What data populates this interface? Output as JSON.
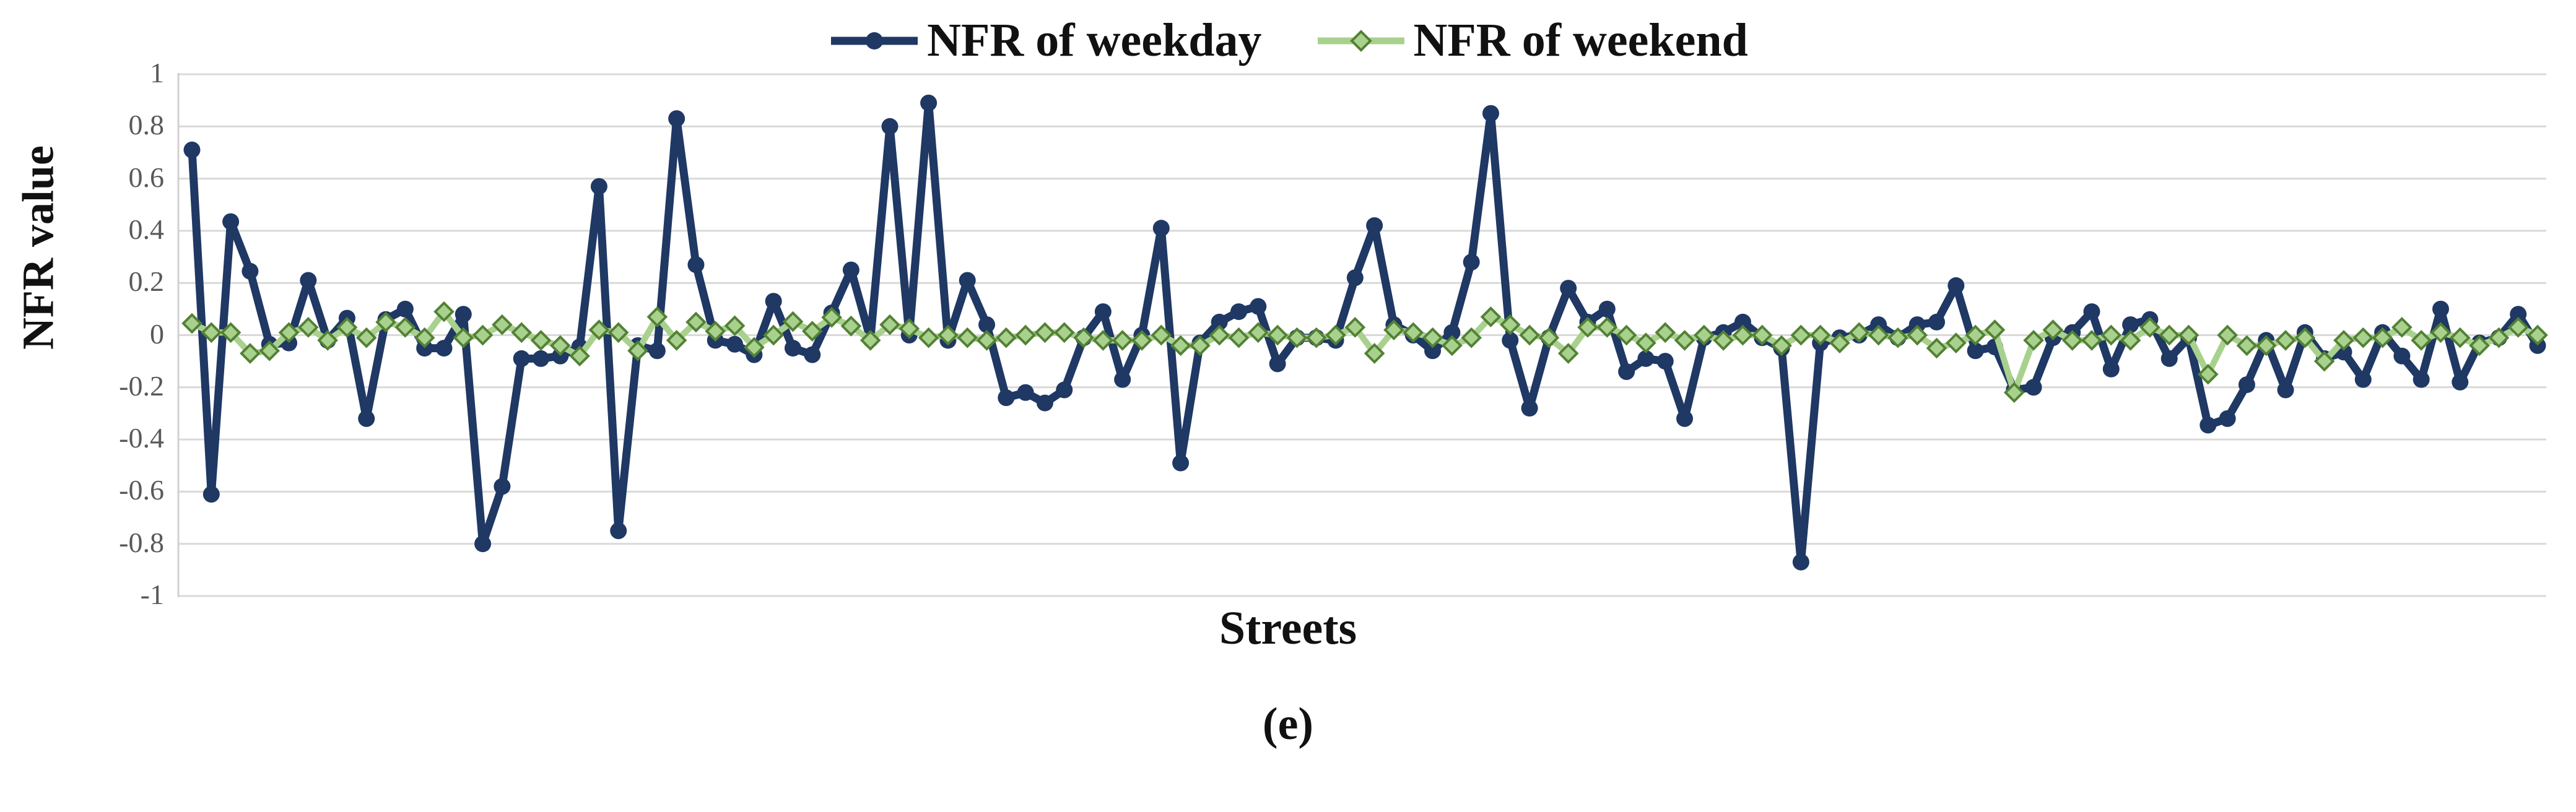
{
  "figure": {
    "caption": "(e)",
    "background": "#ffffff"
  },
  "chart_data": {
    "type": "line",
    "title": "",
    "xlabel": "Streets",
    "ylabel": "NFR value",
    "ylim": [
      -1,
      1
    ],
    "x_count": 122,
    "x_tick_labels": [],
    "grid": "horizontal",
    "legend_position": "top-center",
    "y_ticks": [
      1,
      0.8,
      0.6,
      0.4,
      0.2,
      0,
      -0.2,
      -0.4,
      -0.6,
      -0.8,
      -1
    ],
    "y_tick_labels": [
      "1",
      "0.8",
      "0.6",
      "0.4",
      "0.2",
      "0",
      "-0.2",
      "-0.4",
      "-0.6",
      "-0.8",
      "-1"
    ],
    "colors": {
      "weekday_line": "#1f3864",
      "weekend_line": "#a9d18e",
      "weekend_marker_stroke": "#538135",
      "grid": "#d9d9d9",
      "axis": "#d0d0d0",
      "tick_text": "#595959",
      "label_text": "#111111"
    },
    "series": [
      {
        "name": "NFR of weekday",
        "marker": "circle",
        "color": "#1f3864",
        "values": [
          0.71,
          -0.61,
          0.435,
          0.245,
          -0.035,
          -0.03,
          0.21,
          -0.02,
          0.065,
          -0.32,
          0.06,
          0.1,
          -0.05,
          -0.05,
          0.08,
          -0.8,
          -0.58,
          -0.09,
          -0.09,
          -0.08,
          -0.045,
          0.57,
          -0.75,
          -0.04,
          -0.06,
          0.83,
          0.27,
          -0.02,
          -0.035,
          -0.075,
          0.13,
          -0.05,
          -0.075,
          0.085,
          0.25,
          -0.015,
          0.8,
          0.0,
          0.89,
          -0.02,
          0.21,
          0.04,
          -0.24,
          -0.22,
          -0.26,
          -0.21,
          -0.01,
          0.09,
          -0.17,
          0.0,
          0.41,
          -0.49,
          -0.03,
          0.05,
          0.09,
          0.11,
          -0.11,
          -0.01,
          -0.01,
          -0.02,
          0.22,
          0.42,
          0.04,
          0.0,
          -0.06,
          0.01,
          0.28,
          0.85,
          -0.02,
          -0.28,
          -0.01,
          0.18,
          0.05,
          0.1,
          -0.14,
          -0.09,
          -0.1,
          -0.32,
          -0.01,
          0.01,
          0.05,
          -0.01,
          -0.05,
          -0.87,
          -0.03,
          -0.01,
          0.0,
          0.04,
          -0.01,
          0.04,
          0.05,
          0.19,
          -0.06,
          -0.045,
          -0.21,
          -0.2,
          -0.01,
          0.01,
          0.09,
          -0.13,
          0.04,
          0.06,
          -0.09,
          -0.01,
          -0.345,
          -0.32,
          -0.19,
          -0.02,
          -0.21,
          0.01,
          -0.09,
          -0.065,
          -0.17,
          0.01,
          -0.08,
          -0.17,
          0.1,
          -0.18,
          -0.03,
          -0.01,
          0.08,
          -0.04
        ]
      },
      {
        "name": "NFR of weekend",
        "marker": "diamond",
        "color": "#a9d18e",
        "marker_stroke": "#538135",
        "values": [
          0.045,
          0.01,
          0.01,
          -0.07,
          -0.06,
          0.01,
          0.03,
          -0.02,
          0.03,
          -0.01,
          0.05,
          0.03,
          -0.01,
          0.09,
          -0.01,
          0.0,
          0.04,
          0.01,
          -0.02,
          -0.04,
          -0.08,
          0.02,
          0.01,
          -0.06,
          0.07,
          -0.02,
          0.05,
          0.015,
          0.036,
          -0.047,
          0.0,
          0.052,
          0.015,
          0.068,
          0.035,
          -0.02,
          0.04,
          0.025,
          -0.01,
          0.0,
          -0.01,
          -0.02,
          -0.01,
          0.0,
          0.01,
          0.01,
          -0.01,
          -0.02,
          -0.02,
          -0.02,
          0.0,
          -0.04,
          -0.04,
          0.0,
          -0.01,
          0.01,
          0.0,
          -0.01,
          -0.01,
          0.0,
          0.03,
          -0.07,
          0.02,
          0.01,
          -0.01,
          -0.04,
          -0.01,
          0.07,
          0.04,
          0.0,
          -0.01,
          -0.07,
          0.03,
          0.03,
          0.0,
          -0.03,
          0.01,
          -0.02,
          0.0,
          -0.02,
          0.0,
          0.0,
          -0.04,
          0.0,
          0.0,
          -0.03,
          0.01,
          0.0,
          -0.01,
          0.0,
          -0.05,
          -0.03,
          0.0,
          0.02,
          -0.22,
          -0.02,
          0.02,
          -0.02,
          -0.02,
          0.0,
          -0.02,
          0.03,
          0.0,
          0.0,
          -0.15,
          0.0,
          -0.04,
          -0.04,
          -0.02,
          -0.01,
          -0.1,
          -0.02,
          -0.01,
          -0.01,
          0.03,
          -0.02,
          0.01,
          -0.01,
          -0.04,
          -0.01,
          0.03,
          0.0
        ]
      }
    ]
  }
}
